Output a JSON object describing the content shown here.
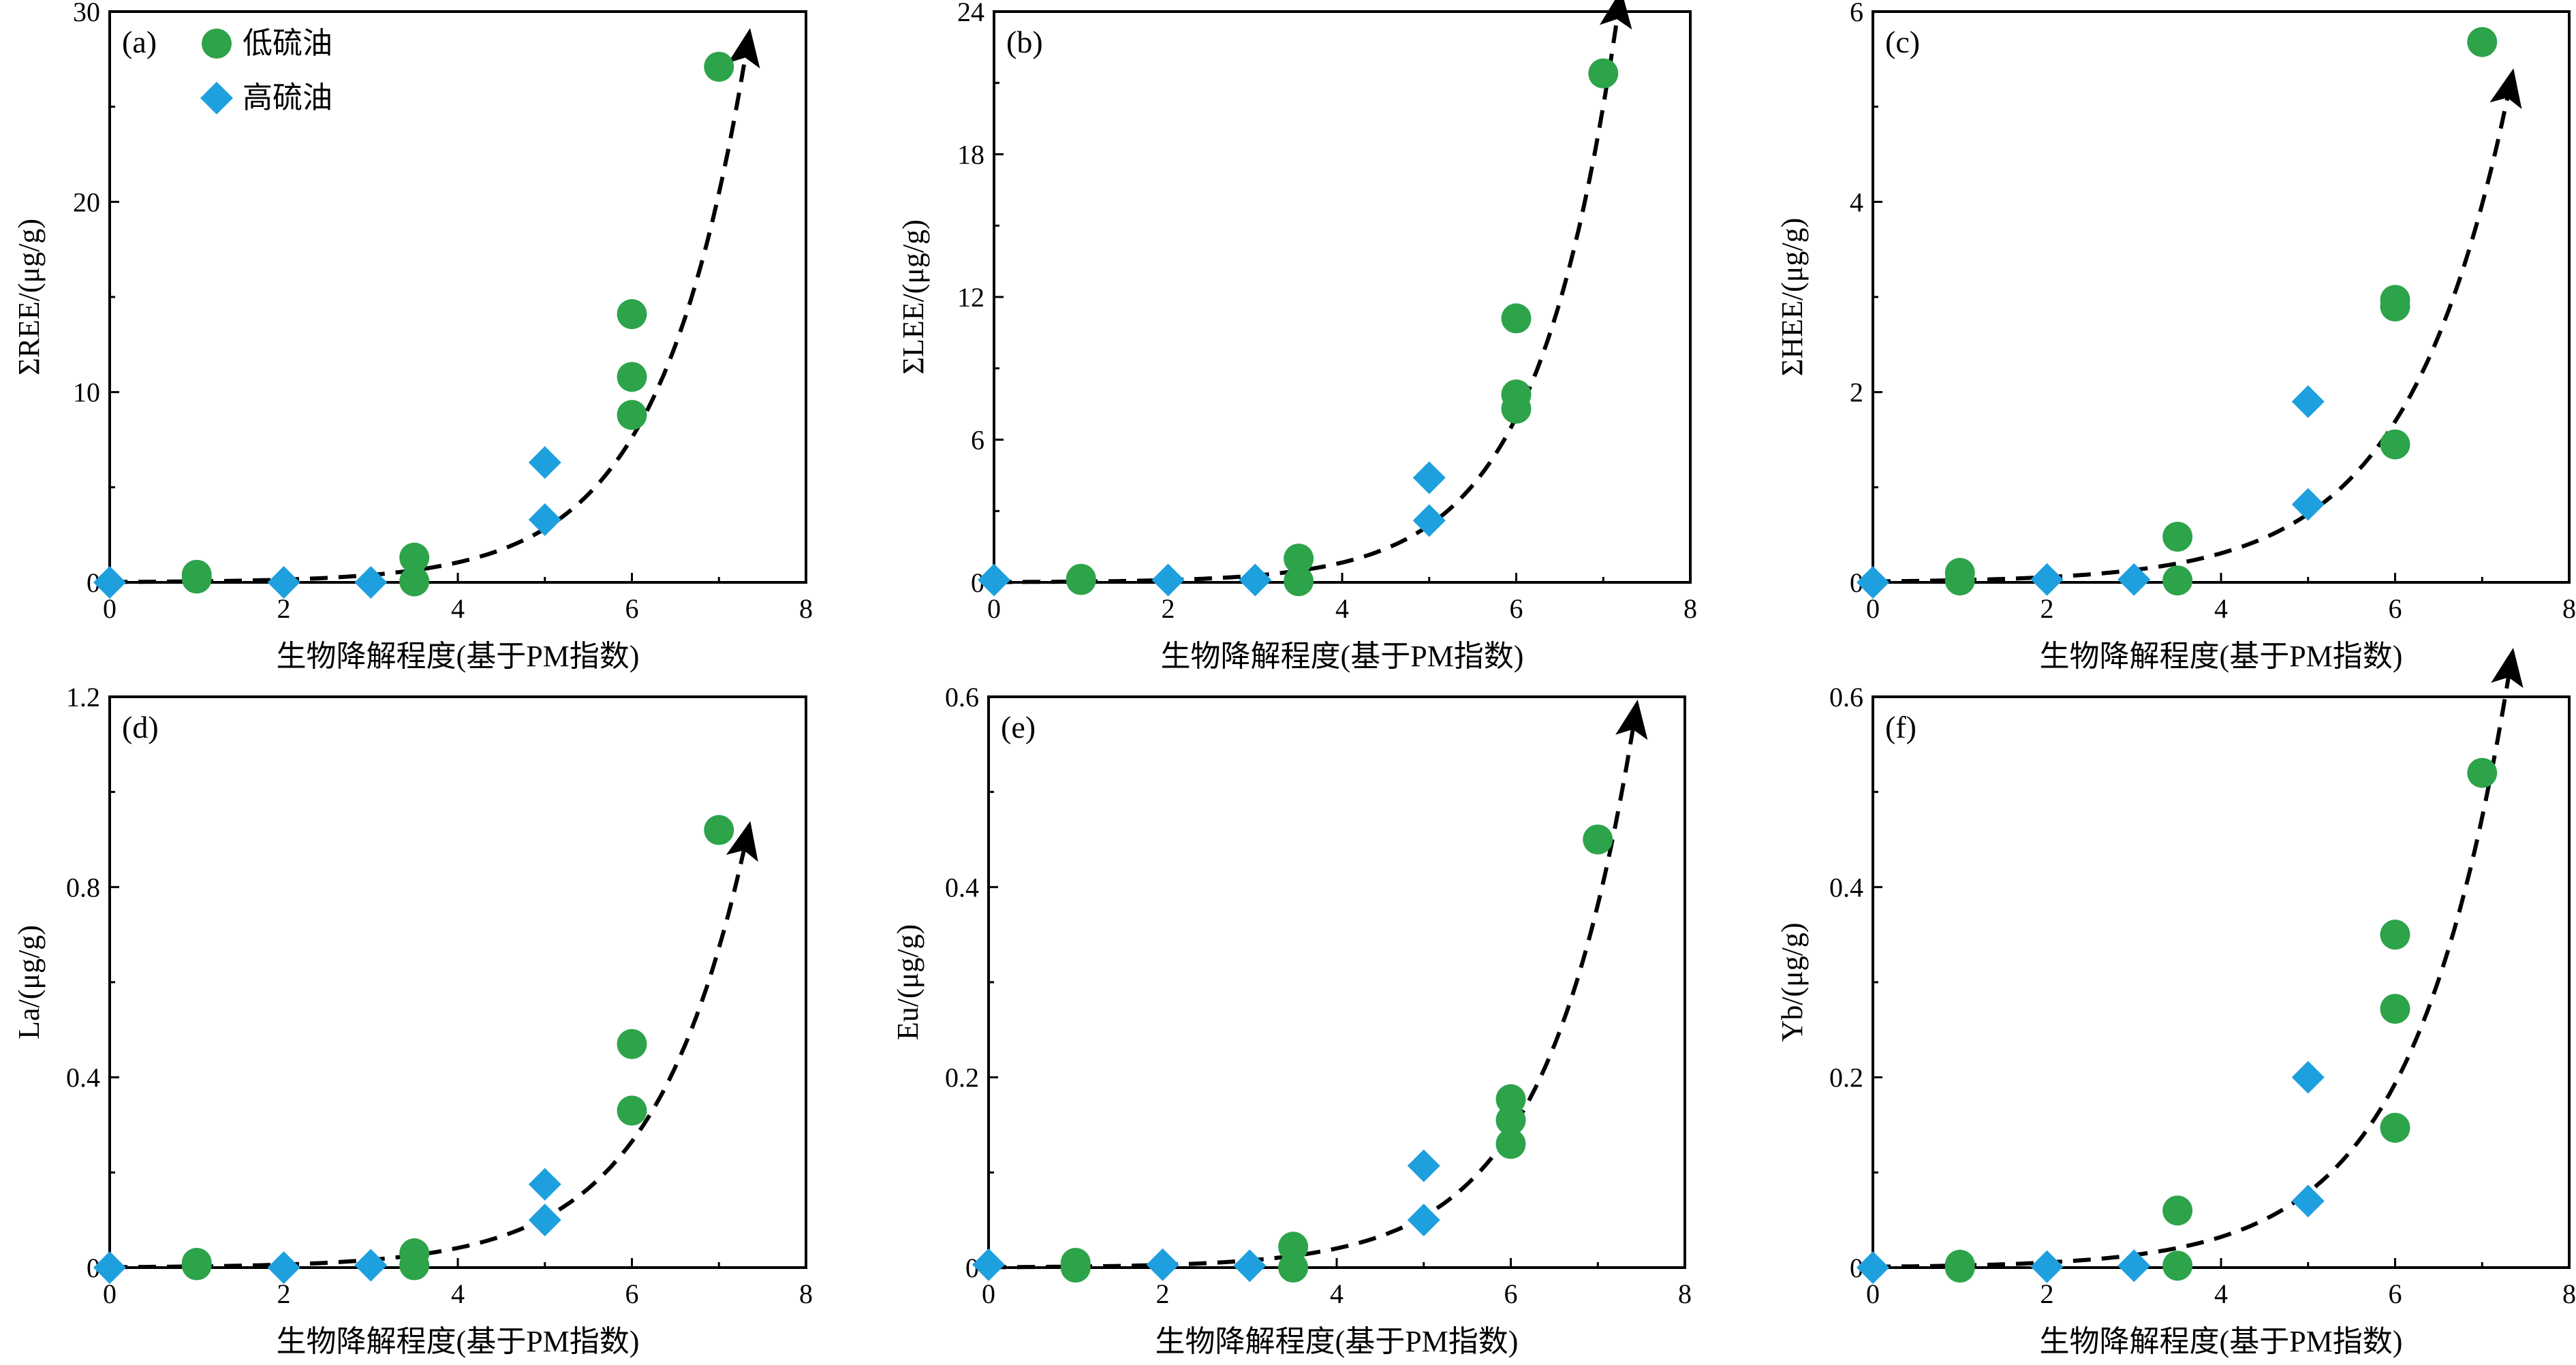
{
  "colors": {
    "low_sulfur": "#2da34a",
    "high_sulfur": "#1ea0de",
    "trend": "#000000"
  },
  "legend": {
    "low_sulfur": "低硫油",
    "high_sulfur": "高硫油"
  },
  "chart_data": [
    {
      "type": "scatter",
      "panel_label": "(a)",
      "xlabel": "生物降解程度(基于PM指数)",
      "ylabel": "ΣREE/(μg/g)",
      "xlim": [
        0,
        8
      ],
      "ylim": [
        0,
        30
      ],
      "xticks": [
        "0",
        "2",
        "4",
        "6",
        "8"
      ],
      "yticks": [
        "0",
        "10",
        "20",
        "30"
      ],
      "legend": "top-left",
      "series": [
        {
          "name": "低硫油",
          "marker": "circle",
          "x": [
            1,
            1,
            3.5,
            3.5,
            6,
            6,
            6,
            7
          ],
          "y": [
            0.4,
            0.2,
            1.3,
            0.05,
            14.1,
            10.8,
            8.8,
            27.1
          ]
        },
        {
          "name": "高硫油",
          "marker": "diamond",
          "x": [
            0,
            2,
            3,
            5,
            5
          ],
          "y": [
            0,
            0,
            0,
            6.3,
            3.3
          ]
        }
      ],
      "trend": {
        "style": "dashed-arrow",
        "a": 0.02,
        "b": 0.99,
        "x_end": 7.35
      }
    },
    {
      "type": "scatter",
      "panel_label": "(b)",
      "xlabel": "生物降解程度(基于PM指数)",
      "ylabel": "ΣLEE/(μg/g)",
      "xlim": [
        0,
        8
      ],
      "ylim": [
        0,
        24
      ],
      "xticks": [
        "0",
        "2",
        "4",
        "6",
        "8"
      ],
      "yticks": [
        "0",
        "6",
        "12",
        "18",
        "24"
      ],
      "series": [
        {
          "name": "低硫油",
          "marker": "circle",
          "x": [
            1,
            1,
            3.5,
            3.5,
            6,
            6,
            6,
            7
          ],
          "y": [
            0.15,
            0.1,
            1.0,
            0.05,
            11.1,
            7.9,
            7.3,
            21.4
          ]
        },
        {
          "name": "高硫油",
          "marker": "diamond",
          "x": [
            0,
            2,
            3,
            5,
            5
          ],
          "y": [
            0.1,
            0.1,
            0.1,
            4.4,
            2.6
          ]
        }
      ],
      "trend": {
        "style": "dashed-arrow",
        "a": 0.012,
        "b": 1.06,
        "x_end": 7.2
      }
    },
    {
      "type": "scatter",
      "panel_label": "(c)",
      "xlabel": "生物降解程度(基于PM指数)",
      "ylabel": "ΣHEE/(μg/g)",
      "xlim": [
        0,
        8
      ],
      "ylim": [
        0,
        6
      ],
      "xticks": [
        "0",
        "2",
        "4",
        "6",
        "8"
      ],
      "yticks": [
        "0",
        "2",
        "4",
        "6"
      ],
      "series": [
        {
          "name": "低硫油",
          "marker": "circle",
          "x": [
            1,
            1,
            3.5,
            3.5,
            6,
            6,
            6,
            7
          ],
          "y": [
            0.1,
            0.02,
            0.48,
            0.02,
            2.97,
            2.9,
            1.45,
            5.68
          ]
        },
        {
          "name": "高硫油",
          "marker": "diamond",
          "x": [
            0,
            2,
            3,
            5,
            5
          ],
          "y": [
            0,
            0.03,
            0.03,
            1.9,
            0.82
          ]
        }
      ],
      "trend": {
        "style": "dashed-arrow",
        "a": 0.01,
        "b": 0.855,
        "x_end": 7.35
      }
    },
    {
      "type": "scatter",
      "panel_label": "(d)",
      "xlabel": "生物降解程度(基于PM指数)",
      "ylabel": "La/(μg/g)",
      "xlim": [
        0,
        8
      ],
      "ylim": [
        0,
        1.2
      ],
      "xticks": [
        "0",
        "2",
        "4",
        "6",
        "8"
      ],
      "yticks": [
        "0",
        "0.4",
        "0.8",
        "1.2"
      ],
      "series": [
        {
          "name": "低硫油",
          "marker": "circle",
          "x": [
            1,
            1,
            3.5,
            3.5,
            6,
            6,
            7
          ],
          "y": [
            0.01,
            0.005,
            0.03,
            0.005,
            0.47,
            0.33,
            0.92
          ]
        },
        {
          "name": "高硫油",
          "marker": "diamond",
          "x": [
            0,
            2,
            3,
            5,
            5
          ],
          "y": [
            0,
            0,
            0.005,
            0.175,
            0.1
          ]
        }
      ],
      "trend": {
        "style": "dashed-arrow",
        "a": 0.001,
        "b": 0.93,
        "x_end": 7.35
      }
    },
    {
      "type": "scatter",
      "panel_label": "(e)",
      "xlabel": "生物降解程度(基于PM指数)",
      "ylabel": "Eu/(μg/g)",
      "xlim": [
        0,
        8
      ],
      "ylim": [
        0,
        0.6
      ],
      "xticks": [
        "0",
        "2",
        "4",
        "6",
        "8"
      ],
      "yticks": [
        "0",
        "0.2",
        "0.4",
        "0.6"
      ],
      "series": [
        {
          "name": "低硫油",
          "marker": "circle",
          "x": [
            1,
            1,
            3.5,
            3.5,
            6,
            6,
            6,
            7
          ],
          "y": [
            0.005,
            0.0,
            0.022,
            0.0,
            0.177,
            0.155,
            0.13,
            0.45
          ]
        },
        {
          "name": "高硫油",
          "marker": "diamond",
          "x": [
            0,
            2,
            3,
            5,
            5
          ],
          "y": [
            0.003,
            0.003,
            0.002,
            0.107,
            0.05
          ]
        }
      ],
      "trend": {
        "style": "dashed-arrow",
        "a": 0.0004,
        "b": 0.98,
        "x_end": 7.45
      }
    },
    {
      "type": "scatter",
      "panel_label": "(f)",
      "xlabel": "生物降解程度(基于PM指数)",
      "ylabel": "Yb/(μg/g)",
      "xlim": [
        0,
        8
      ],
      "ylim": [
        0,
        0.6
      ],
      "xticks": [
        "0",
        "2",
        "4",
        "6",
        "8"
      ],
      "yticks": [
        "0",
        "0.2",
        "0.4",
        "0.6"
      ],
      "series": [
        {
          "name": "低硫油",
          "marker": "circle",
          "x": [
            1,
            1,
            3.5,
            3.5,
            6,
            6,
            6,
            7
          ],
          "y": [
            0.003,
            0.0,
            0.06,
            0.002,
            0.35,
            0.272,
            0.147,
            0.52
          ]
        },
        {
          "name": "高硫油",
          "marker": "diamond",
          "x": [
            0,
            2,
            3,
            5,
            5
          ],
          "y": [
            0,
            0.001,
            0.002,
            0.2,
            0.07
          ]
        }
      ],
      "trend": {
        "style": "dashed-arrow",
        "a": 0.0009,
        "b": 0.895,
        "x_end": 7.35
      }
    }
  ]
}
